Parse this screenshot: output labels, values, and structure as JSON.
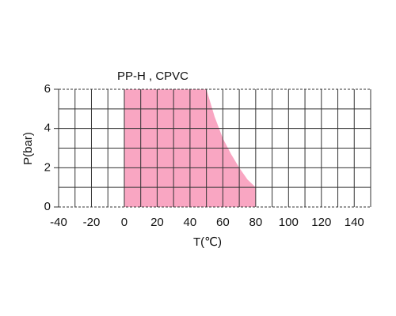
{
  "chart_data": {
    "type": "area",
    "title": "PP-H , CPVC",
    "x_label": "T(℃)",
    "y_label": "P(bar)",
    "x": [
      0,
      50,
      55,
      60,
      65,
      70,
      75,
      80
    ],
    "values": [
      6,
      6,
      4.6,
      3.5,
      2.7,
      2.0,
      1.4,
      1.0
    ],
    "color": "#f9a6c2",
    "xlim": [
      -40,
      150
    ],
    "xticks": [
      -40,
      -20,
      0,
      20,
      40,
      60,
      80,
      100,
      120,
      140
    ],
    "xgrid_minor": [
      -30,
      -10,
      10,
      30,
      50,
      70,
      90,
      110,
      130,
      150
    ],
    "ylim": [
      0,
      6
    ],
    "yticks": [
      0,
      2,
      4,
      6
    ],
    "ygrid_minor": [
      1,
      3,
      5
    ],
    "grid": true
  }
}
